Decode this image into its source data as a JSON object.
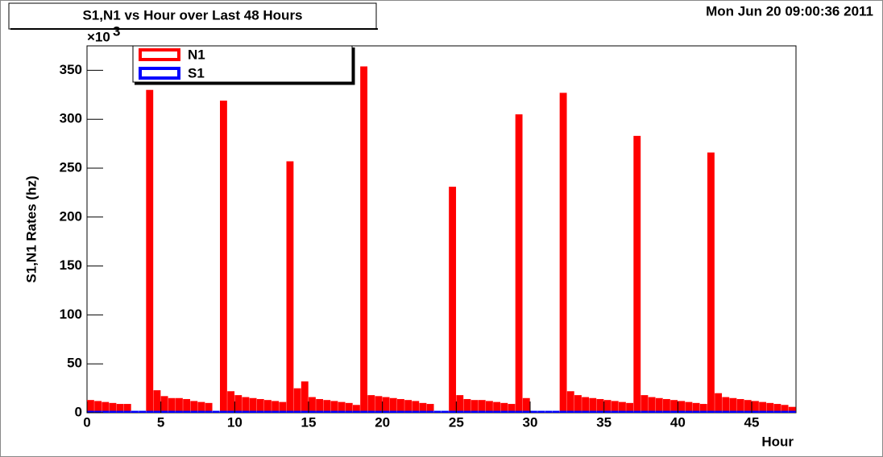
{
  "chart_data": {
    "type": "histogram",
    "title": "S1,N1 vs Hour over Last 48 Hours",
    "date": "Mon Jun 20 09:00:36 2011",
    "x_label": "Hour",
    "y_label": "S1,N1 Rates (hz)",
    "y_multiplier": {
      "base": "×10",
      "exponent": "3"
    },
    "xlim": [
      0,
      48
    ],
    "xticks": [
      0,
      5,
      10,
      15,
      20,
      25,
      30,
      35,
      40,
      45
    ],
    "ylim": [
      0,
      375
    ],
    "yticks": [
      0,
      50,
      100,
      150,
      200,
      250,
      300,
      350
    ],
    "bins": [
      0,
      0.5,
      1,
      1.5,
      2,
      2.5,
      3,
      3.5,
      4,
      4.5,
      5,
      5.5,
      6,
      6.5,
      7,
      7.5,
      8,
      8.5,
      9,
      9.5,
      10,
      10.5,
      11,
      11.5,
      12,
      12.5,
      13,
      13.5,
      14,
      14.5,
      15,
      15.5,
      16,
      16.5,
      17,
      17.5,
      18,
      18.5,
      19,
      19.5,
      20,
      20.5,
      21,
      21.5,
      22,
      22.5,
      23,
      23.5,
      24,
      24.5,
      25,
      25.5,
      26,
      26.5,
      27,
      27.5,
      28,
      28.5,
      29,
      29.5,
      30,
      30.5,
      31,
      31.5,
      32,
      32.5,
      33,
      33.5,
      34,
      34.5,
      35,
      35.5,
      36,
      36.5,
      37,
      37.5,
      38,
      38.5,
      39,
      39.5,
      40,
      40.5,
      41,
      41.5,
      42,
      42.5,
      43,
      43.5,
      44,
      44.5,
      45,
      45.5,
      46,
      46.5,
      47,
      47.5,
      48
    ],
    "series": [
      {
        "name": "N1",
        "color": "#ff0000",
        "values": [
          13,
          12,
          11,
          10,
          9,
          9,
          0,
          0,
          330,
          23,
          17,
          15,
          15,
          14,
          12,
          11,
          10,
          0,
          319,
          22,
          18,
          16,
          15,
          14,
          13,
          12,
          11,
          257,
          25,
          32,
          16,
          14,
          13,
          12,
          11,
          10,
          8,
          354,
          18,
          17,
          16,
          15,
          14,
          13,
          12,
          10,
          9,
          0,
          0,
          231,
          18,
          14,
          13,
          13,
          12,
          11,
          10,
          9,
          305,
          15,
          0,
          0,
          0,
          0,
          327,
          22,
          18,
          16,
          15,
          14,
          13,
          12,
          11,
          10,
          283,
          18,
          16,
          15,
          14,
          13,
          12,
          11,
          10,
          9,
          266,
          20,
          16,
          15,
          14,
          13,
          12,
          11,
          10,
          9,
          8,
          6
        ]
      },
      {
        "name": "S1",
        "color": "#0000ff",
        "values": [
          2,
          2,
          2,
          2,
          2,
          2,
          2,
          2,
          2,
          2,
          2,
          2,
          2,
          2,
          2,
          2,
          2,
          2,
          2,
          2,
          2,
          2,
          2,
          2,
          2,
          2,
          2,
          2,
          2,
          2,
          2,
          2,
          2,
          2,
          2,
          2,
          2,
          2,
          2,
          2,
          2,
          2,
          2,
          2,
          2,
          2,
          2,
          2,
          2,
          2,
          2,
          2,
          2,
          2,
          2,
          2,
          2,
          2,
          2,
          2,
          2,
          2,
          2,
          2,
          2,
          2,
          2,
          2,
          2,
          2,
          2,
          2,
          2,
          2,
          2,
          2,
          2,
          2,
          2,
          2,
          2,
          2,
          2,
          2,
          2,
          2,
          2,
          2,
          2,
          2,
          2,
          2,
          2,
          2,
          2,
          2
        ]
      }
    ]
  }
}
